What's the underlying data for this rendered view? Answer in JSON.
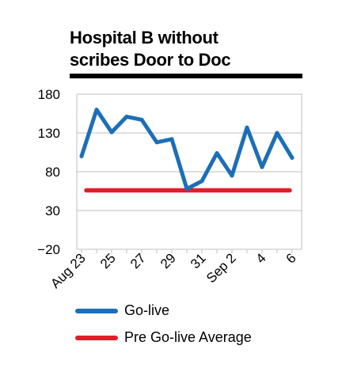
{
  "title_line1": "Hospital B without",
  "title_line2": "scribes Door to Doc",
  "colors": {
    "golive": "#1c6fb7",
    "average": "#e31e2a",
    "grid": "#bfbfbf"
  },
  "chart_data": {
    "type": "line",
    "title": "Hospital B without scribes Door to Doc",
    "xlabel": "",
    "ylabel": "",
    "ylim": [
      -20,
      180
    ],
    "yticks": [
      -20,
      30,
      80,
      130,
      180
    ],
    "grid": true,
    "legend_position": "bottom",
    "x_tick_labels": [
      "Aug 23",
      "25",
      "27",
      "29",
      "31",
      "Sep 2",
      "4",
      "6"
    ],
    "x": [
      "Aug 23",
      "Aug 24",
      "Aug 25",
      "Aug 26",
      "Aug 27",
      "Aug 28",
      "Aug 29",
      "Aug 30",
      "Aug 31",
      "Sep 1",
      "Sep 2",
      "Sep 3",
      "Sep 4",
      "Sep 5",
      "Sep 6"
    ],
    "series": [
      {
        "name": "Go-live",
        "values": [
          100,
          160,
          131,
          151,
          147,
          118,
          122,
          58,
          68,
          104,
          75,
          137,
          86,
          130,
          98
        ]
      },
      {
        "name": "Pre Go-live Average",
        "values": [
          56,
          56,
          56,
          56,
          56,
          56,
          56,
          56,
          56,
          56,
          56,
          56,
          56,
          56,
          56
        ]
      }
    ]
  }
}
